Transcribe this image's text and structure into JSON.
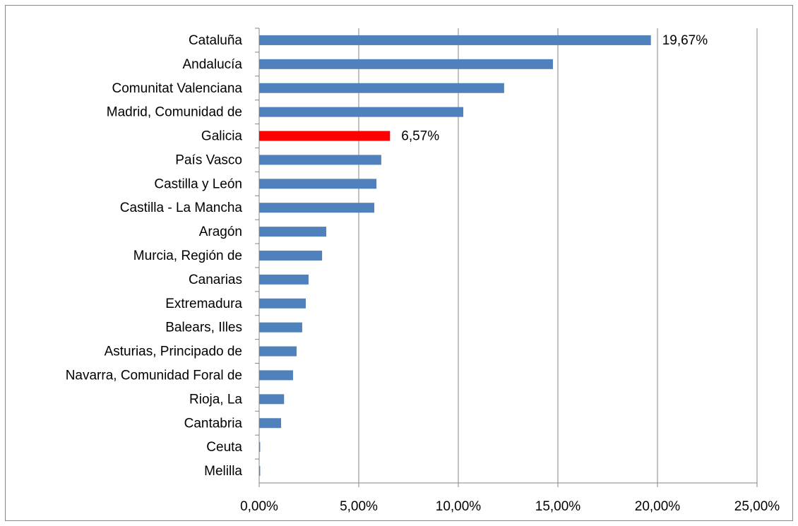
{
  "chart_data": {
    "type": "hbar",
    "categories": [
      "Cataluña",
      "Andalucía",
      "Comunitat Valenciana",
      "Madrid, Comunidad de",
      "Galicia",
      "País Vasco",
      "Castilla y León",
      "Castilla - La Mancha",
      "Aragón",
      "Murcia, Región de",
      "Canarias",
      "Extremadura",
      "Balears, Illes",
      "Asturias, Principado de",
      "Navarra, Comunidad Foral de",
      "Rioja, La",
      "Cantabria",
      "Ceuta",
      "Melilla"
    ],
    "values": [
      19.67,
      14.75,
      12.3,
      10.25,
      6.57,
      6.13,
      5.89,
      5.78,
      3.37,
      3.16,
      2.48,
      2.34,
      2.16,
      1.88,
      1.7,
      1.25,
      1.1,
      0.05,
      0.05
    ],
    "value_labels": [
      "19,67%",
      null,
      null,
      null,
      "6,57%",
      null,
      null,
      null,
      null,
      null,
      null,
      null,
      null,
      null,
      null,
      null,
      null,
      null,
      null
    ],
    "colors": [
      "#4f81bd",
      "#4f81bd",
      "#4f81bd",
      "#4f81bd",
      "#ff0000",
      "#4f81bd",
      "#4f81bd",
      "#4f81bd",
      "#4f81bd",
      "#4f81bd",
      "#4f81bd",
      "#4f81bd",
      "#4f81bd",
      "#4f81bd",
      "#4f81bd",
      "#4f81bd",
      "#4f81bd",
      "#4f81bd",
      "#4f81bd"
    ],
    "xlim": [
      0,
      25
    ],
    "xticks": [
      {
        "value": 0,
        "label": "0,00%"
      },
      {
        "value": 5,
        "label": "5,00%"
      },
      {
        "value": 10,
        "label": "10,00%"
      },
      {
        "value": 15,
        "label": "15,00%"
      },
      {
        "value": 20,
        "label": "20,00%"
      },
      {
        "value": 25,
        "label": "25,00%"
      }
    ],
    "grid": true
  }
}
